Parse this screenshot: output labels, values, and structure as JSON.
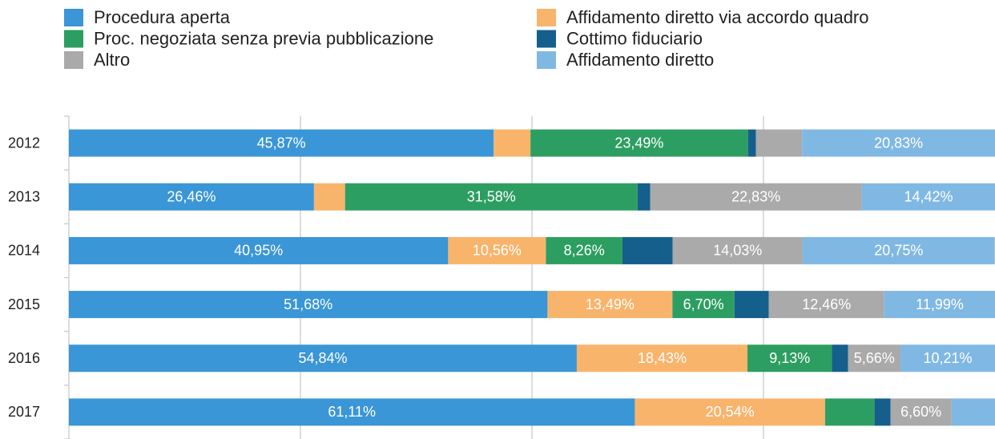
{
  "chart_data": {
    "type": "stacked-bar-horizontal",
    "categories": [
      "2012",
      "2013",
      "2014",
      "2015",
      "2016",
      "2017"
    ],
    "xlim": [
      0,
      100
    ],
    "xticks": [
      0,
      25,
      50,
      75
    ],
    "grid": true,
    "legend": "top",
    "series": [
      {
        "name": "Procedura aperta",
        "color": "#3a96d6",
        "values": [
          45.87,
          26.46,
          40.95,
          51.68,
          54.84,
          61.11
        ],
        "value_labels": [
          "45,87%",
          "26,46%",
          "40,95%",
          "51,68%",
          "54,84%",
          "61,11%"
        ]
      },
      {
        "name": "Affidamento diretto via accordo quadro",
        "color": "#f9b46c",
        "values": [
          3.97,
          3.36,
          10.56,
          13.49,
          18.43,
          20.54
        ],
        "value_labels": [
          null,
          null,
          "10,56%",
          "13,49%",
          "18,43%",
          "20,54%"
        ]
      },
      {
        "name": "Proc. negoziata senza previa pubblicazione",
        "color": "#2d9e62",
        "values": [
          23.49,
          31.58,
          8.26,
          6.7,
          9.13,
          5.34
        ],
        "value_labels": [
          "23,49%",
          "31,58%",
          "8,26%",
          "6,70%",
          "9,13%",
          null
        ]
      },
      {
        "name": "Cottimo fiduciario",
        "color": "#155f8c",
        "values": [
          0.86,
          1.38,
          5.43,
          3.71,
          1.73,
          1.72
        ],
        "value_labels": [
          null,
          null,
          null,
          null,
          null,
          null
        ]
      },
      {
        "name": "Altro",
        "color": "#aaaaaa",
        "values": [
          4.98,
          22.83,
          14.03,
          12.46,
          5.66,
          6.6
        ],
        "value_labels": [
          null,
          "22,83%",
          "14,03%",
          "12,46%",
          "5,66%",
          "6,60%"
        ]
      },
      {
        "name": "Affidamento diretto",
        "color": "#80b8e4",
        "values": [
          20.83,
          14.42,
          20.75,
          11.99,
          10.21,
          4.69
        ],
        "value_labels": [
          "20,83%",
          "14,42%",
          "20,75%",
          "11,99%",
          "10,21%",
          null
        ]
      }
    ]
  }
}
